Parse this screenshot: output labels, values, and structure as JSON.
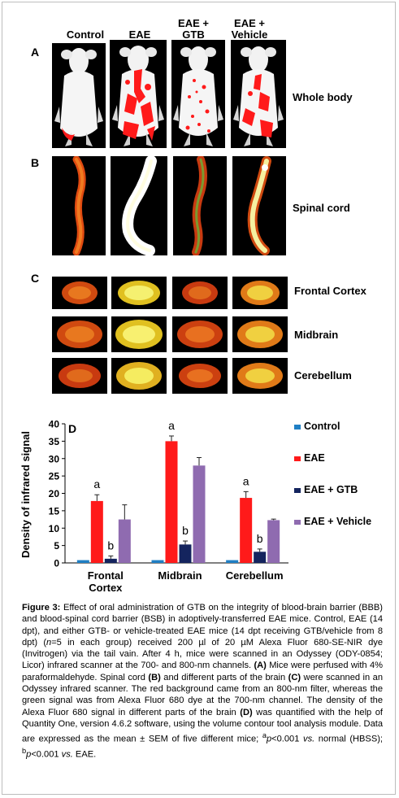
{
  "columns": [
    "Control",
    "EAE",
    "EAE +\nGTB",
    "EAE +\nVehicle"
  ],
  "panels": {
    "A": {
      "letter": "A",
      "label": "Whole body"
    },
    "B": {
      "letter": "B",
      "label": "Spinal cord"
    },
    "C": {
      "letter": "C",
      "rows": [
        "Frontal Cortex",
        "Midbrain",
        "Cerebellum"
      ]
    },
    "D": {
      "letter": "D"
    }
  },
  "colors": {
    "control": "#1f7fc4",
    "eae": "#ff1a1a",
    "eae_gtb": "#14245e",
    "eae_vehicle": "#8f6bb0"
  },
  "chart_data": {
    "type": "bar",
    "ylabel": "Density of infrared signal",
    "ylim": [
      0,
      40
    ],
    "yticks": [
      0,
      5,
      10,
      15,
      20,
      25,
      30,
      35,
      40
    ],
    "categories": [
      "Frontal\nCortex",
      "Midbrain",
      "Cerebellum"
    ],
    "series": [
      {
        "name": "Control",
        "values": [
          0.8,
          0.8,
          0.8
        ],
        "errors": [
          0,
          0,
          0
        ],
        "letters": [
          "",
          "",
          ""
        ]
      },
      {
        "name": "EAE",
        "values": [
          17.8,
          35.0,
          18.7
        ],
        "errors": [
          1.8,
          1.5,
          1.8
        ],
        "letters": [
          "a",
          "a",
          "a"
        ]
      },
      {
        "name": "EAE + GTB",
        "values": [
          1.2,
          5.3,
          3.2
        ],
        "errors": [
          0.8,
          1.0,
          0.8
        ],
        "letters": [
          "b",
          "b",
          "b"
        ]
      },
      {
        "name": "EAE  + Vehicle",
        "values": [
          12.5,
          28.0,
          12.3
        ],
        "errors": [
          4.2,
          2.3,
          0.3
        ],
        "letters": [
          "",
          "",
          ""
        ]
      }
    ],
    "legend_position": "right"
  },
  "caption": {
    "figure_label": "Figure 3:",
    "text_1": " Effect of oral administration of GTB on the integrity of blood-brain barrier (BBB) and blood-spinal cord barrier (BSB) in adoptively-transferred EAE mice. Control, EAE (14 dpt), and either GTB- or vehicle-treated EAE mice (14 dpt receiving GTB/vehicle from 8 dpt) (",
    "n_eq": "n",
    "text_2": "=5 in each group) received 200 µl of 20 µM Alexa Fluor 680-SE-NIR dye (Invitrogen) via the tail vain. After 4 h, mice were scanned in an Odyssey (ODY-0854; Licor) infrared scanner at the 700- and 800-nm channels. ",
    "ref_A": "(A)",
    "text_3": " Mice were perfused with 4% paraformaldehyde. Spinal cord ",
    "ref_B": "(B)",
    "text_4": " and different parts of the brain ",
    "ref_C": "(C)",
    "text_5": " were scanned in an Odyssey infrared scanner. The red background came from an 800-nm filter, whereas the green signal was from Alexa Fluor 680 dye at the 700-nm channel. The density of the Alexa Fluor 680 signal in different parts of the brain ",
    "ref_D": "(D)",
    "text_6": " was quantified with the help of Quantity One, version 4.6.2 software, using the volume contour tool analysis module. Data are expressed as the mean ± SEM of five different mice; ",
    "sup_a": "a",
    "p_a": "p",
    "text_7": "<0.001 ",
    "vs_1": "vs.",
    "text_8": " normal (HBSS); ",
    "sup_b": "b",
    "p_b": "p",
    "text_9": "<0.001 ",
    "vs_2": "vs.",
    "text_10": " EAE."
  }
}
